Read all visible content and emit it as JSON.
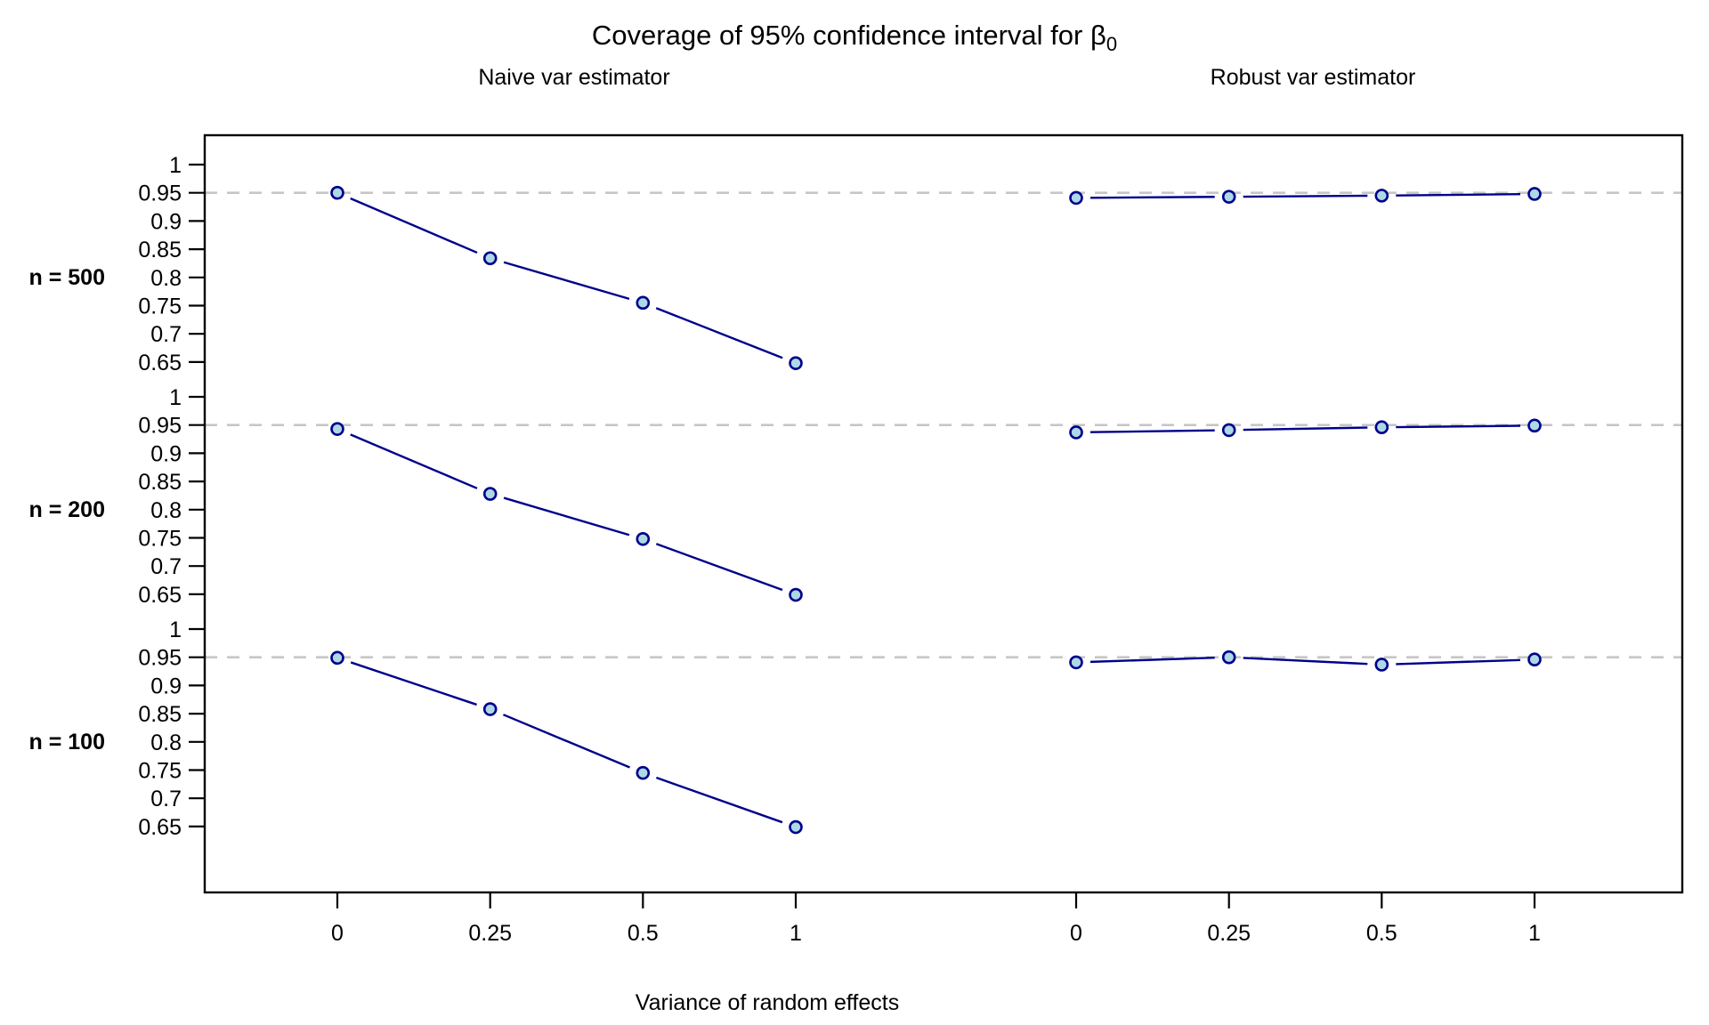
{
  "title": {
    "main": "Coverage of 95% confidence interval for ",
    "symbol": "β",
    "subscript": "0"
  },
  "chart_data": {
    "type": "line",
    "layout": "trellis: 3 stacked row panels (n) x 2 columns (estimator), single outer frame, shared axes",
    "columns": [
      {
        "label": "Naive var estimator"
      },
      {
        "label": "Robust var estimator"
      }
    ],
    "rows": [
      {
        "label": "n = 500"
      },
      {
        "label": "n = 200"
      },
      {
        "label": "n = 100"
      }
    ],
    "x": [
      0,
      0.25,
      0.5,
      1
    ],
    "x_tick_labels": [
      "0",
      "0.25",
      "0.5",
      "1"
    ],
    "x_spacing": "equal (categorical spacing despite numeric values)",
    "y_ticks": [
      1,
      0.95,
      0.9,
      0.85,
      0.8,
      0.75,
      0.7,
      0.65
    ],
    "y_tick_labels": [
      "1",
      "0.95",
      "0.9",
      "0.85",
      "0.8",
      "0.75",
      "0.7",
      "0.65"
    ],
    "ylim_per_panel": [
      0.615,
      1.035
    ],
    "reference_line": 0.95,
    "reference_style": "dashed light gray horizontal line at y=0.95 in every row panel",
    "xlabel": "Variance of random effects",
    "series": [
      {
        "name": "Naive var estimator, n = 500",
        "row": 0,
        "col": 0,
        "values": [
          0.95,
          0.834,
          0.755,
          0.648
        ]
      },
      {
        "name": "Robust var estimator, n = 500",
        "row": 0,
        "col": 1,
        "values": [
          0.941,
          0.943,
          0.945,
          0.948
        ]
      },
      {
        "name": "Naive var estimator, n = 200",
        "row": 1,
        "col": 0,
        "values": [
          0.943,
          0.828,
          0.748,
          0.649
        ]
      },
      {
        "name": "Robust var estimator, n = 200",
        "row": 1,
        "col": 1,
        "values": [
          0.937,
          0.941,
          0.946,
          0.949
        ]
      },
      {
        "name": "Naive var estimator, n = 100",
        "row": 2,
        "col": 0,
        "values": [
          0.949,
          0.858,
          0.745,
          0.649
        ]
      },
      {
        "name": "Robust var estimator, n = 100",
        "row": 2,
        "col": 1,
        "values": [
          0.941,
          0.95,
          0.937,
          0.946
        ]
      }
    ],
    "marker": "open-circle",
    "line_style": "type=b (segments with gaps around markers)",
    "grid": "off",
    "legend": "none",
    "colors": {
      "line": "#00008B",
      "marker_fill": "#ADD8E6",
      "marker_edge": "#00008B",
      "reference": "#C6C6C6",
      "axis": "#000000",
      "background": "#FFFFFF"
    }
  }
}
